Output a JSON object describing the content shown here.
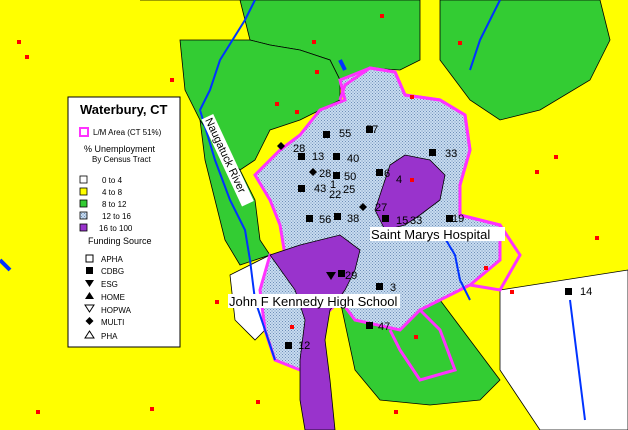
{
  "colors": {
    "bin_0_4": "#ffffff",
    "bin_4_8": "#ffff00",
    "bin_8_12": "#33cc33",
    "bin_12_16": "#b8d0e8",
    "bin_16_100": "#9933cc",
    "lm_area_outline": "#ff33ff",
    "river": "#0033ff"
  },
  "legend": {
    "title": "Waterbury, CT",
    "lm_area": "L/M Area (CT 51%)",
    "unemp_title": "% Unemployment",
    "unemp_subtitle": "By Census Tract",
    "bins": [
      {
        "label": "0 to 4"
      },
      {
        "label": "4 to 8"
      },
      {
        "label": "8 to 12"
      },
      {
        "label": "12 to 16"
      },
      {
        "label": "16 to 100"
      }
    ],
    "funding_title": "Funding Source",
    "funding": [
      {
        "label": "APHA",
        "icon": "open-square-icon"
      },
      {
        "label": "CDBG",
        "icon": "filled-square-icon"
      },
      {
        "label": "ESG",
        "icon": "filled-down-triangle-icon"
      },
      {
        "label": "HOME",
        "icon": "filled-up-triangle-icon"
      },
      {
        "label": "HOPWA",
        "icon": "open-down-triangle-icon"
      },
      {
        "label": "MULTI",
        "icon": "filled-diamond-icon"
      },
      {
        "label": "PHA",
        "icon": "open-up-triangle-icon"
      }
    ]
  },
  "map_labels": {
    "river": "Naugatuck River",
    "hospital": "Saint Marys Hospital",
    "school": "John F Kennedy High School"
  },
  "site_labels": [
    "55",
    "57",
    "28",
    "13",
    "40",
    "33",
    "50",
    "6",
    "4",
    "28",
    "43",
    "1",
    "25",
    "22",
    "27",
    "56",
    "38",
    "15",
    "33",
    "19",
    "29",
    "3",
    "14",
    "47",
    "12"
  ]
}
